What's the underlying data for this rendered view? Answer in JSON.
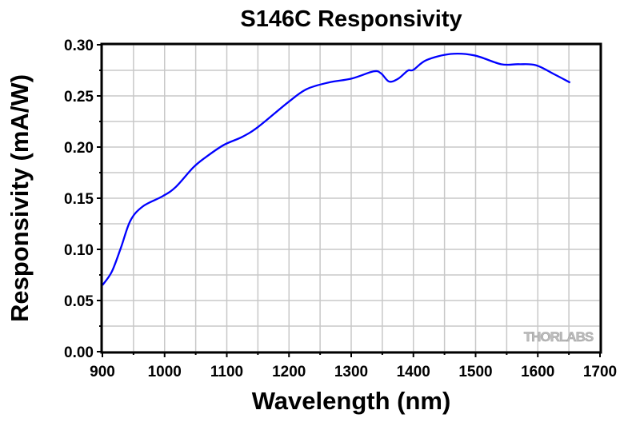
{
  "chart_data": {
    "type": "line",
    "title": "S146C Responsivity",
    "xlabel": "Wavelength (nm)",
    "ylabel": "Responsivity (mA/W)",
    "xlim": [
      900,
      1700
    ],
    "ylim": [
      0,
      0.3
    ],
    "x_ticks": [
      "900",
      "1000",
      "1100",
      "1200",
      "1300",
      "1400",
      "1500",
      "1600",
      "1700"
    ],
    "y_ticks": [
      "0.00",
      "0.05",
      "0.10",
      "0.15",
      "0.20",
      "0.25",
      "0.30"
    ],
    "grid": true,
    "line_color": "#0000ff",
    "watermark": "THORLABS",
    "series": [
      {
        "x": [
          900,
          915,
          930,
          945,
          965,
          997,
          1018,
          1046,
          1066,
          1095,
          1125,
          1151,
          1198,
          1228,
          1263,
          1301,
          1336,
          1348,
          1361,
          1376,
          1391,
          1400,
          1421,
          1460,
          1498,
          1541,
          1569,
          1597,
          1627,
          1652
        ],
        "y": [
          0.065,
          0.078,
          0.102,
          0.128,
          0.142,
          0.152,
          0.161,
          0.18,
          0.19,
          0.202,
          0.21,
          0.22,
          0.2435,
          0.2565,
          0.263,
          0.267,
          0.274,
          0.272,
          0.264,
          0.267,
          0.2747,
          0.2755,
          0.285,
          0.291,
          0.2896,
          0.281,
          0.281,
          0.28,
          0.271,
          0.263
        ]
      }
    ]
  }
}
